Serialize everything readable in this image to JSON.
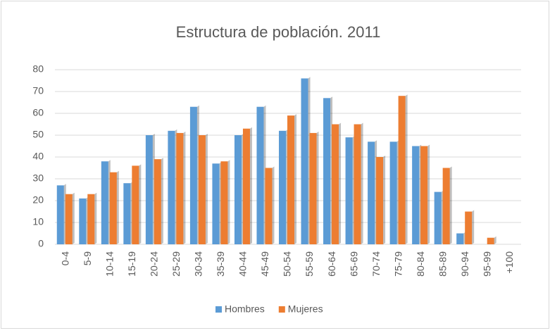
{
  "chart_data": {
    "type": "bar",
    "title": "Estructura de población. 2011",
    "categories": [
      "0-4",
      "5-9",
      "10-14",
      "15-19",
      "20-24",
      "25-29",
      "30-34",
      "35-39",
      "40-44",
      "45-49",
      "50-54",
      "55-59",
      "60-64",
      "65-69",
      "70-74",
      "75-79",
      "80-84",
      "85-89",
      "90-94",
      "95-99",
      "+100"
    ],
    "series": [
      {
        "name": "Hombres",
        "color": "#5b9bd5",
        "values": [
          27,
          21,
          38,
          28,
          50,
          52,
          63,
          37,
          50,
          63,
          52,
          76,
          67,
          49,
          47,
          47,
          45,
          24,
          5,
          0,
          0
        ]
      },
      {
        "name": "Mujeres",
        "color": "#ed7d31",
        "values": [
          23,
          23,
          33,
          36,
          39,
          51,
          50,
          38,
          53,
          35,
          59,
          51,
          55,
          55,
          40,
          68,
          45,
          35,
          15,
          3,
          0
        ]
      }
    ],
    "ylim": [
      0,
      80
    ],
    "yticks": [
      0,
      10,
      20,
      30,
      40,
      50,
      60,
      70,
      80
    ],
    "grid": true,
    "legend": "bottom"
  }
}
